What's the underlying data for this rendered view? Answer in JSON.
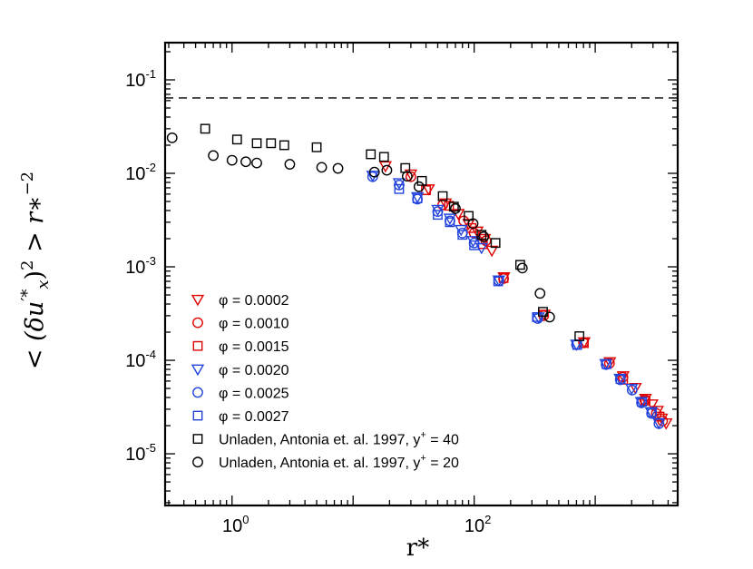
{
  "chart_data": {
    "type": "scatter",
    "x_scale": "log",
    "y_scale": "log",
    "xlim": [
      0.28,
      4800
    ],
    "ylim": [
      2.8e-06,
      0.25
    ],
    "xlabel": "r*",
    "ylabel_parts": {
      "bracket_open": "<",
      "delta": "(δu",
      "sub": "x",
      "sup": "′*",
      "square": ")2",
      "bracket_close": ">",
      "r": "r∗",
      "exp": "−2"
    },
    "x_ticks": [
      {
        "value": 1,
        "base": "10",
        "exp": "0"
      },
      {
        "value": 100,
        "base": "10",
        "exp": "2"
      }
    ],
    "y_ticks": [
      {
        "value": 0.1,
        "base": "10",
        "exp": "-1"
      },
      {
        "value": 0.01,
        "base": "10",
        "exp": "-2"
      },
      {
        "value": 0.001,
        "base": "10",
        "exp": "-3"
      },
      {
        "value": 0.0001,
        "base": "10",
        "exp": "-4"
      },
      {
        "value": 1e-05,
        "base": "10",
        "exp": "-5"
      }
    ],
    "reference_line": {
      "y": 0.064,
      "style": "dashed"
    },
    "legend_position": "bottom-left",
    "series": [
      {
        "name": "φ = 0.0002",
        "marker": "triangle-down",
        "color": "#e00000",
        "points": [
          [
            18.5,
            0.012
          ],
          [
            30,
            0.0098
          ],
          [
            42,
            0.0068
          ],
          [
            58,
            0.0048
          ],
          [
            74,
            0.0037
          ],
          [
            90,
            0.0029
          ],
          [
            106,
            0.0024
          ],
          [
            122,
            0.002
          ],
          [
            140,
            0.0015
          ],
          [
            176,
            0.00078
          ],
          [
            380,
            0.00031
          ],
          [
            810,
            0.000157
          ],
          [
            1320,
            9.6e-05
          ],
          [
            1700,
            6.8e-05
          ],
          [
            2150,
            5.1e-05
          ],
          [
            2600,
            3.9e-05
          ],
          [
            2950,
            3.4e-05
          ],
          [
            3270,
            2.9e-05
          ],
          [
            3540,
            2.4e-05
          ],
          [
            3850,
            2.13e-05
          ]
        ]
      },
      {
        "name": "φ = 0.0010",
        "marker": "circle",
        "color": "#e00000",
        "points": [
          [
            30,
            0.0092
          ],
          [
            55,
            0.0046
          ],
          [
            82,
            0.0031
          ],
          [
            100,
            0.0023
          ],
          [
            125,
            0.0019
          ],
          [
            175,
            0.00075
          ],
          [
            375,
            0.0003
          ],
          [
            800,
            0.000155
          ],
          [
            1310,
            9.3e-05
          ],
          [
            1690,
            6.6e-05
          ],
          [
            2560,
            3.8e-05
          ],
          [
            3200,
            2.7e-05
          ],
          [
            3600,
            2.25e-05
          ]
        ]
      },
      {
        "name": "φ = 0.0015",
        "marker": "square",
        "color": "#e00000",
        "points": [
          [
            40,
            0.0066
          ],
          [
            62,
            0.0045
          ],
          [
            95,
            0.0026
          ],
          [
            118,
            0.00175
          ],
          [
            175,
            0.00076
          ],
          [
            805,
            0.000153
          ],
          [
            1700,
            6.2e-05
          ],
          [
            2600,
            3.7e-05
          ],
          [
            3400,
            2.5e-05
          ]
        ]
      },
      {
        "name": "φ = 0.0020",
        "marker": "triangle-down",
        "color": "#2244dd",
        "points": [
          [
            14.5,
            0.0095
          ],
          [
            24,
            0.0079
          ],
          [
            34,
            0.0056
          ],
          [
            50,
            0.0041
          ],
          [
            63,
            0.0033
          ],
          [
            78,
            0.0025
          ],
          [
            98,
            0.0019
          ],
          [
            115,
            0.0016
          ],
          [
            160,
            0.00072
          ],
          [
            340,
            0.00029
          ],
          [
            700,
            0.000148
          ],
          [
            1220,
            9.2e-05
          ],
          [
            1600,
            6.4e-05
          ],
          [
            2000,
            5e-05
          ],
          [
            2400,
            3.6e-05
          ],
          [
            2900,
            2.8e-05
          ],
          [
            3350,
            2.15e-05
          ]
        ]
      },
      {
        "name": "φ = 0.0025",
        "marker": "circle",
        "color": "#2244dd",
        "points": [
          [
            14.5,
            0.0092
          ],
          [
            24,
            0.0075
          ],
          [
            34,
            0.0053
          ],
          [
            50,
            0.0039
          ],
          [
            63,
            0.0031
          ],
          [
            80,
            0.0023
          ],
          [
            100,
            0.0018
          ],
          [
            160,
            0.00071
          ],
          [
            335,
            0.00028
          ],
          [
            700,
            0.000147
          ],
          [
            1230,
            9e-05
          ],
          [
            1610,
            6.2e-05
          ],
          [
            2020,
            4.8e-05
          ],
          [
            2410,
            3.5e-05
          ],
          [
            2920,
            2.7e-05
          ],
          [
            3360,
            2.1e-05
          ]
        ]
      },
      {
        "name": "φ = 0.0027",
        "marker": "square",
        "color": "#2244dd",
        "points": [
          [
            24,
            0.0068
          ],
          [
            34,
            0.0054
          ],
          [
            50,
            0.0036
          ],
          [
            63,
            0.003
          ],
          [
            80,
            0.0022
          ],
          [
            100,
            0.0017
          ],
          [
            158,
            0.0007
          ],
          [
            330,
            0.00029
          ],
          [
            710,
            0.000146
          ],
          [
            1240,
            9.1e-05
          ],
          [
            1620,
            6.3e-05
          ],
          [
            2430,
            3.6e-05
          ],
          [
            2940,
            2.8e-05
          ]
        ]
      },
      {
        "name": "Unladen, Antonia et. al. 1997, y⁺ = 40",
        "name_main": "Unladen, Antonia et. al. 1997, y",
        "name_sup": "+",
        "name_tail": " = 40",
        "marker": "square",
        "color": "#000000",
        "points": [
          [
            0.6,
            0.03
          ],
          [
            1.1,
            0.023
          ],
          [
            1.6,
            0.021
          ],
          [
            2.1,
            0.021
          ],
          [
            2.7,
            0.02
          ],
          [
            5,
            0.019
          ],
          [
            14,
            0.016
          ],
          [
            18,
            0.015
          ],
          [
            27,
            0.0114
          ],
          [
            37,
            0.0083
          ],
          [
            55,
            0.0057
          ],
          [
            68,
            0.0044
          ],
          [
            90,
            0.0035
          ],
          [
            115,
            0.0022
          ],
          [
            150,
            0.0018
          ],
          [
            240,
            0.00105
          ],
          [
            370,
            0.00033
          ],
          [
            740,
            0.000181
          ]
        ]
      },
      {
        "name": "Unladen, Antonia et. al. 1997, y⁺ = 20",
        "name_main": "Unladen, Antonia et. al. 1997, y",
        "name_sup": "+",
        "name_tail": " = 20",
        "marker": "circle",
        "color": "#000000",
        "points": [
          [
            0.32,
            0.024
          ],
          [
            0.7,
            0.0155
          ],
          [
            1,
            0.0138
          ],
          [
            1.3,
            0.0133
          ],
          [
            1.6,
            0.0129
          ],
          [
            3,
            0.0125
          ],
          [
            5.5,
            0.0116
          ],
          [
            7.5,
            0.0113
          ],
          [
            15,
            0.0103
          ],
          [
            19,
            0.0108
          ],
          [
            28,
            0.0093
          ],
          [
            35,
            0.0072
          ],
          [
            70,
            0.0042
          ],
          [
            98,
            0.0029
          ],
          [
            120,
            0.0021
          ],
          [
            250,
            0.00097
          ],
          [
            350,
            0.00052
          ],
          [
            420,
            0.00029
          ]
        ]
      }
    ]
  }
}
